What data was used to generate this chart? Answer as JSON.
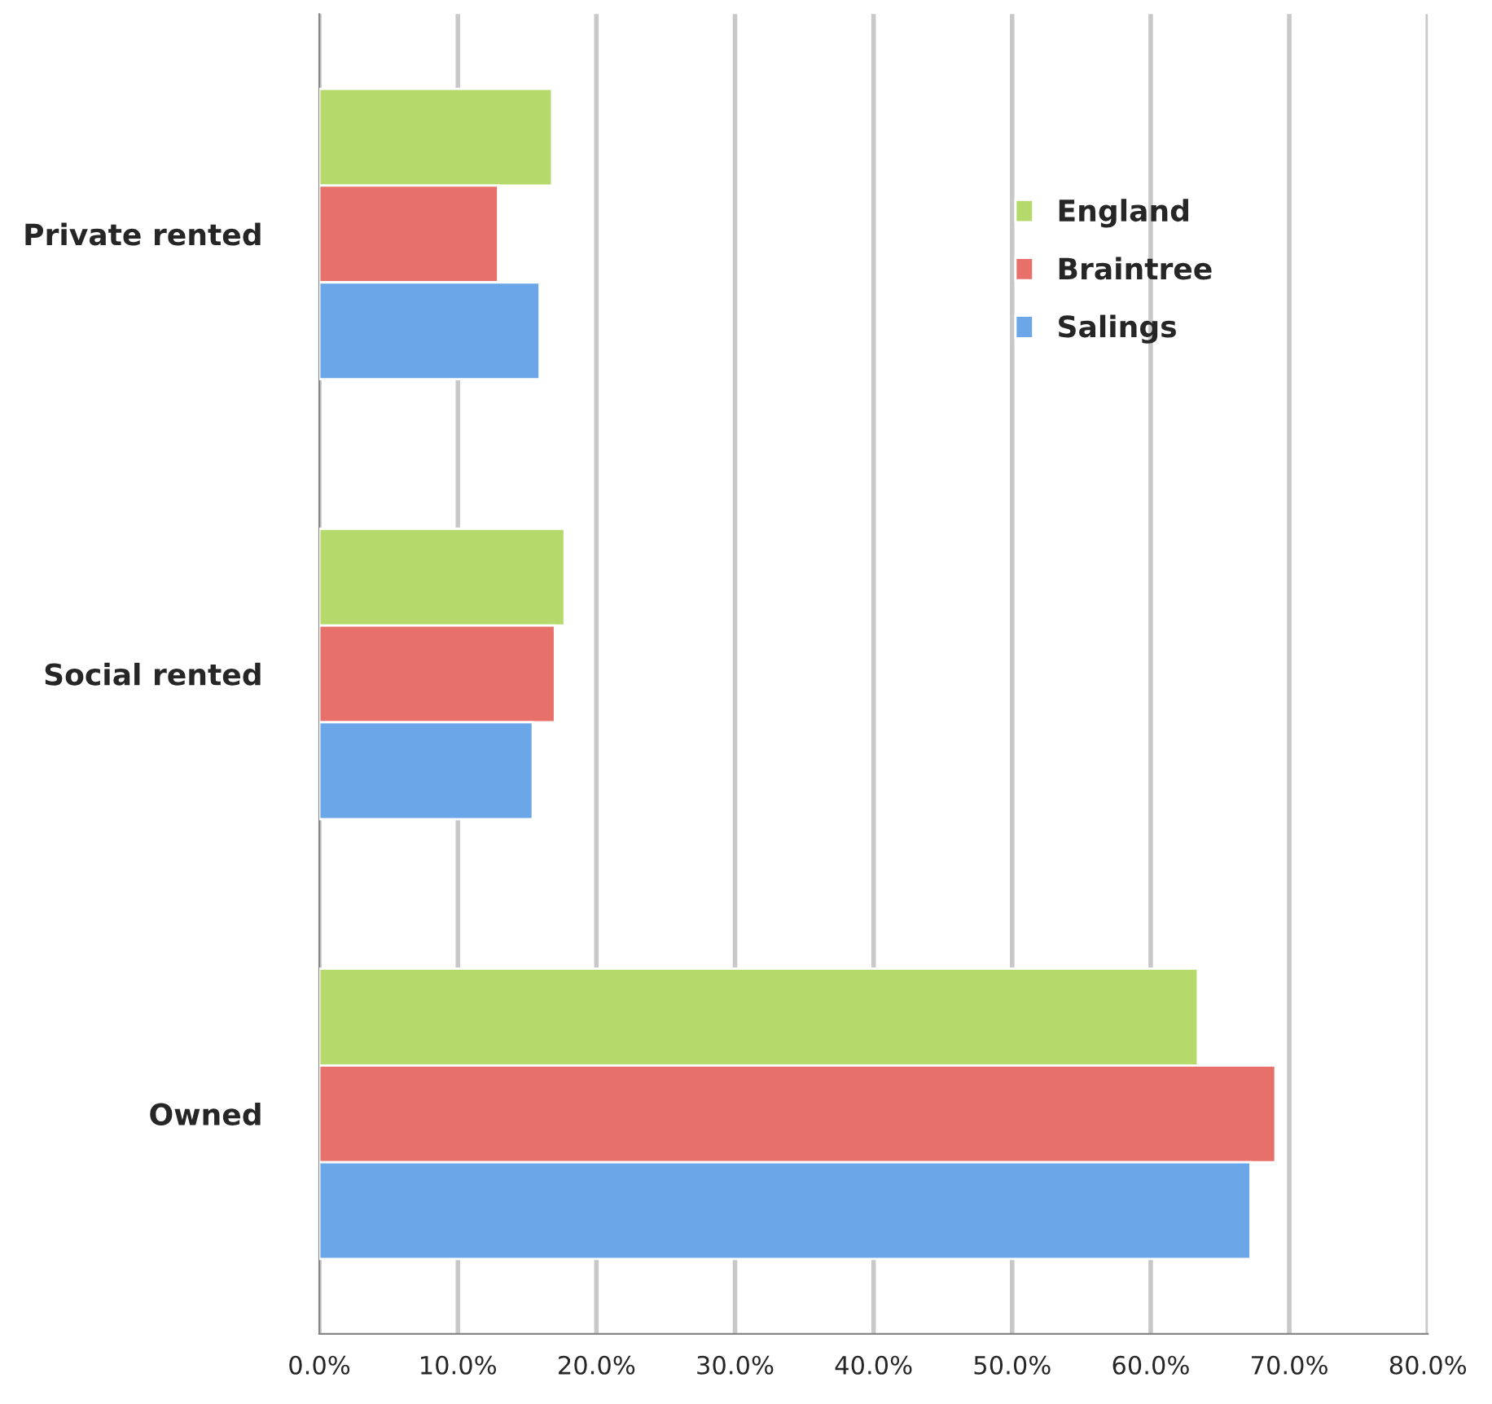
{
  "chart_data": {
    "type": "bar",
    "orientation": "horizontal",
    "categories": [
      "Private rented",
      "Social rented",
      "Owned"
    ],
    "series": [
      {
        "name": "England",
        "color": "#b5d96b",
        "values": [
          16.8,
          17.7,
          63.4
        ]
      },
      {
        "name": "Braintree",
        "color": "#e8706a",
        "values": [
          12.9,
          17.0,
          69.0
        ]
      },
      {
        "name": "Salings",
        "color": "#6aa6e8",
        "values": [
          15.9,
          15.4,
          67.2
        ]
      }
    ],
    "xlim": [
      0,
      80
    ],
    "xticks": [
      {
        "value": 0,
        "label": "0.0%"
      },
      {
        "value": 10,
        "label": "10.0%"
      },
      {
        "value": 20,
        "label": "20.0%"
      },
      {
        "value": 30,
        "label": "30.0%"
      },
      {
        "value": 40,
        "label": "40.0%"
      },
      {
        "value": 50,
        "label": "50.0%"
      },
      {
        "value": 60,
        "label": "60.0%"
      },
      {
        "value": 70,
        "label": "70.0%"
      },
      {
        "value": 80,
        "label": "80.0%"
      }
    ],
    "grid": "x",
    "legend": "top right"
  }
}
